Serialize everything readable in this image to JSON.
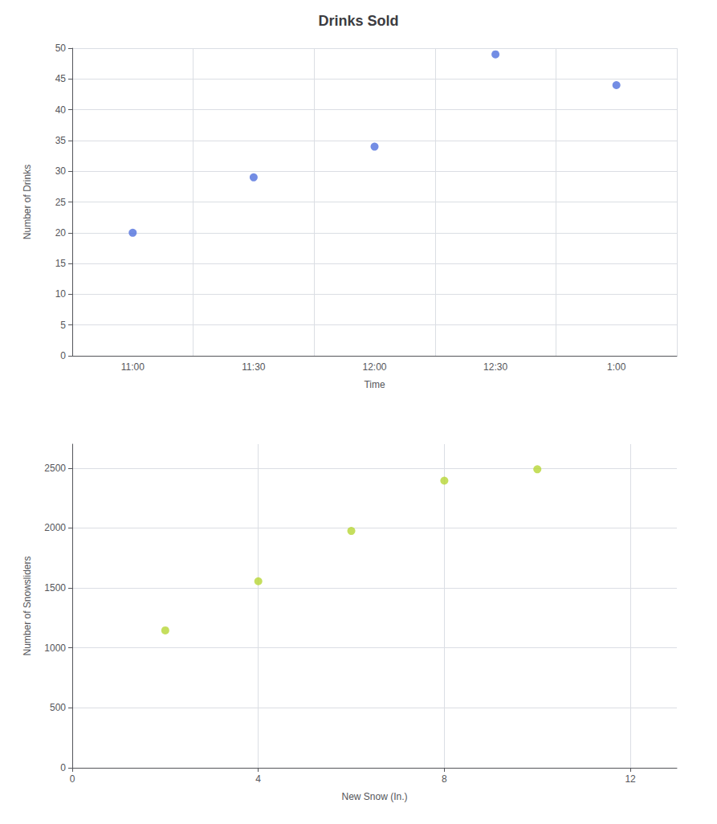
{
  "chart_data": [
    {
      "type": "scatter",
      "title": "Drinks Sold",
      "xlabel": "Time",
      "ylabel": "Number of Drinks",
      "categories": [
        "11:00",
        "11:30",
        "12:00",
        "12:30",
        "1:00"
      ],
      "values": [
        20,
        29,
        34,
        49,
        44
      ],
      "ylim": [
        0,
        50
      ],
      "yticks": [
        0,
        5,
        10,
        15,
        20,
        25,
        30,
        35,
        40,
        45,
        50
      ],
      "grid": true
    },
    {
      "type": "scatter",
      "xlabel": "New Snow (In.)",
      "ylabel": "Number of Snowsliders",
      "x": [
        2,
        4,
        6,
        8,
        10
      ],
      "values": [
        1146,
        1556,
        1976,
        2395,
        2490
      ],
      "xlim": [
        0,
        13
      ],
      "xticks": [
        0,
        4,
        8,
        12
      ],
      "ylim": [
        0,
        2700
      ],
      "yticks": [
        0,
        500,
        1000,
        1500,
        2000,
        2500
      ],
      "grid": true
    }
  ]
}
